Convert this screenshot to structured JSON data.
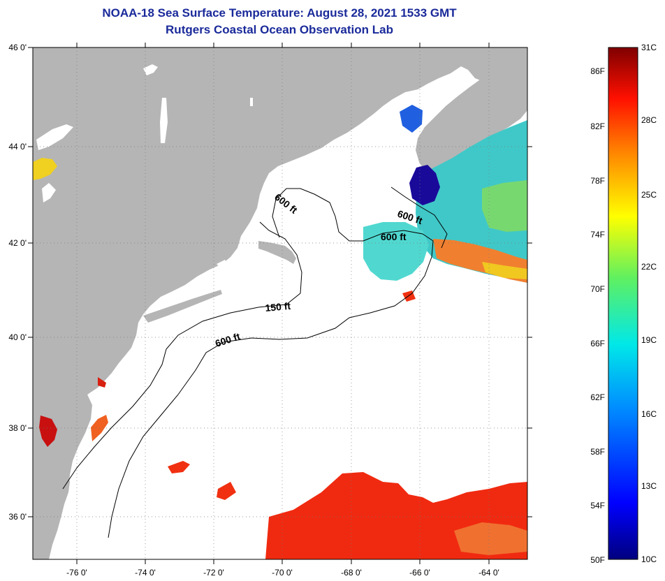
{
  "title": "NOAA-18 Sea Surface Temperature:  August 28, 2021 1533 GMT",
  "subtitle": "Rutgers Coastal Ocean Observation Lab",
  "map": {
    "lat_labels": [
      "46 0'",
      "44 0'",
      "42 0'",
      "40 0'",
      "38 0'",
      "36 0'"
    ],
    "lon_labels": [
      "-76 0'",
      "-74 0'",
      "-72 0'",
      "-70 0'",
      "-68 0'",
      "-66 0'",
      "-64 0'"
    ],
    "contours": [
      "600 ft",
      "600 ft",
      "600 ft",
      "150 ft",
      "600 ft"
    ]
  },
  "colorbar": {
    "celsius": [
      "31C",
      "28C",
      "25C",
      "22C",
      "19C",
      "16C",
      "13C",
      "10C"
    ],
    "fahrenheit": [
      "86F",
      "82F",
      "78F",
      "74F",
      "70F",
      "66F",
      "62F",
      "58F",
      "54F",
      "50F"
    ]
  },
  "colors": {
    "land": "#b5b5b5",
    "ocean": "#ffffff",
    "title": "#1a2a9a",
    "cold": "#1a0a9a",
    "warm": "#e82810"
  }
}
